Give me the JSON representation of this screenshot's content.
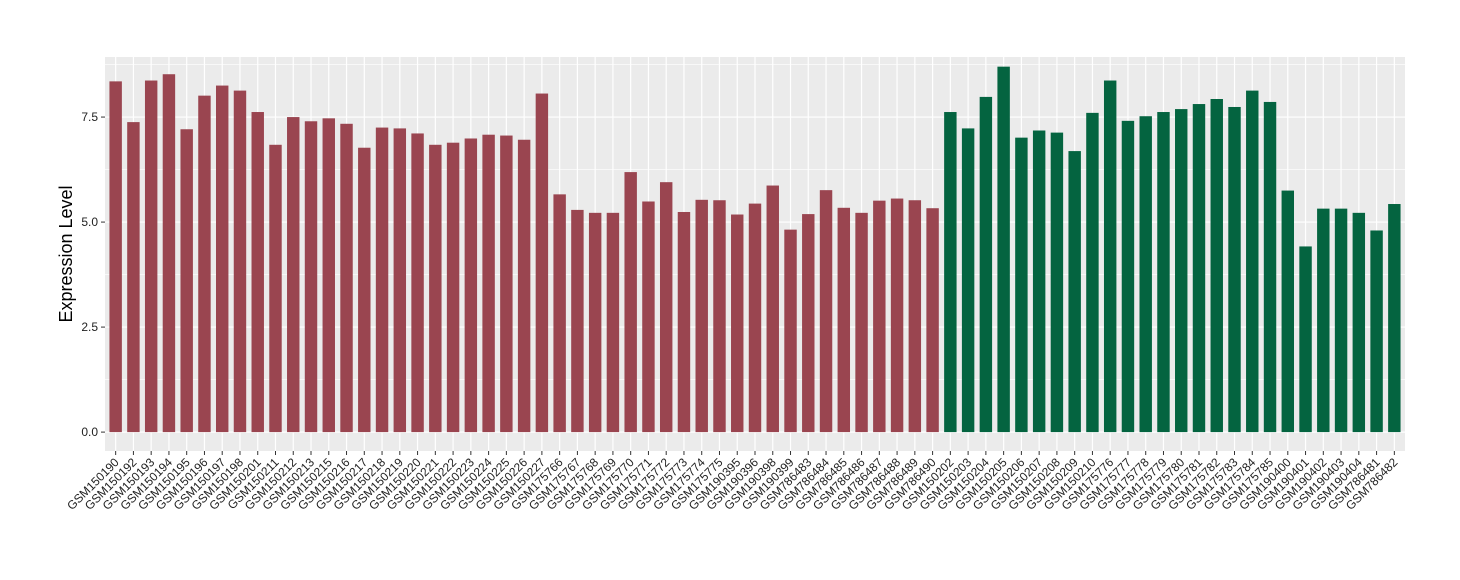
{
  "chart_data": {
    "type": "bar",
    "ylabel": "Expression Level",
    "xlabel": "",
    "ylim": [
      -0.45,
      8.93
    ],
    "yticks": [
      0.0,
      2.5,
      5.0,
      7.5
    ],
    "ytick_labels": [
      "0.0",
      "2.5",
      "5.0",
      "7.5"
    ],
    "grid": true,
    "legend": "none",
    "colors": {
      "group1": "#9a4550",
      "group2": "#046440",
      "panel": "#ebebeb",
      "grid": "#ffffff"
    },
    "categories": [
      "GSM150190",
      "GSM150192",
      "GSM150193",
      "GSM150194",
      "GSM150195",
      "GSM150196",
      "GSM150197",
      "GSM150198",
      "GSM150201",
      "GSM150211",
      "GSM150212",
      "GSM150213",
      "GSM150215",
      "GSM150216",
      "GSM150217",
      "GSM150218",
      "GSM150219",
      "GSM150220",
      "GSM150221",
      "GSM150222",
      "GSM150223",
      "GSM150224",
      "GSM150225",
      "GSM150226",
      "GSM150227",
      "GSM175766",
      "GSM175767",
      "GSM175768",
      "GSM175769",
      "GSM175770",
      "GSM175771",
      "GSM175772",
      "GSM175773",
      "GSM175774",
      "GSM175775",
      "GSM190395",
      "GSM190396",
      "GSM190398",
      "GSM190399",
      "GSM786483",
      "GSM786484",
      "GSM786485",
      "GSM786486",
      "GSM786487",
      "GSM786488",
      "GSM786489",
      "GSM786490",
      "GSM150202",
      "GSM150203",
      "GSM150204",
      "GSM150205",
      "GSM150206",
      "GSM150207",
      "GSM150208",
      "GSM150209",
      "GSM150210",
      "GSM175776",
      "GSM175777",
      "GSM175778",
      "GSM175779",
      "GSM175780",
      "GSM175781",
      "GSM175782",
      "GSM175783",
      "GSM175784",
      "GSM175785",
      "GSM190400",
      "GSM190401",
      "GSM190402",
      "GSM190403",
      "GSM190404",
      "GSM786481",
      "GSM786482"
    ],
    "values": [
      8.35,
      7.38,
      8.37,
      8.52,
      7.21,
      8.01,
      8.25,
      8.13,
      7.62,
      6.84,
      7.5,
      7.4,
      7.47,
      7.34,
      6.77,
      7.25,
      7.23,
      7.11,
      6.84,
      6.89,
      6.99,
      7.08,
      7.06,
      6.96,
      8.06,
      5.66,
      5.29,
      5.22,
      5.22,
      6.19,
      5.49,
      5.95,
      5.24,
      5.53,
      5.52,
      5.18,
      5.44,
      5.87,
      4.82,
      5.19,
      5.76,
      5.34,
      5.22,
      5.51,
      5.56,
      5.52,
      5.33,
      7.62,
      7.23,
      7.98,
      8.7,
      7.01,
      7.18,
      7.13,
      6.69,
      7.6,
      8.37,
      7.41,
      7.52,
      7.62,
      7.69,
      7.81,
      7.93,
      7.74,
      8.13,
      7.86,
      5.75,
      4.42,
      5.32,
      5.32,
      5.22,
      4.8,
      5.43
    ],
    "groups": [
      1,
      1,
      1,
      1,
      1,
      1,
      1,
      1,
      1,
      1,
      1,
      1,
      1,
      1,
      1,
      1,
      1,
      1,
      1,
      1,
      1,
      1,
      1,
      1,
      1,
      1,
      1,
      1,
      1,
      1,
      1,
      1,
      1,
      1,
      1,
      1,
      1,
      1,
      1,
      1,
      1,
      1,
      1,
      1,
      1,
      1,
      1,
      2,
      2,
      2,
      2,
      2,
      2,
      2,
      2,
      2,
      2,
      2,
      2,
      2,
      2,
      2,
      2,
      2,
      2,
      2,
      2,
      2,
      2,
      2,
      2,
      2,
      2
    ]
  }
}
